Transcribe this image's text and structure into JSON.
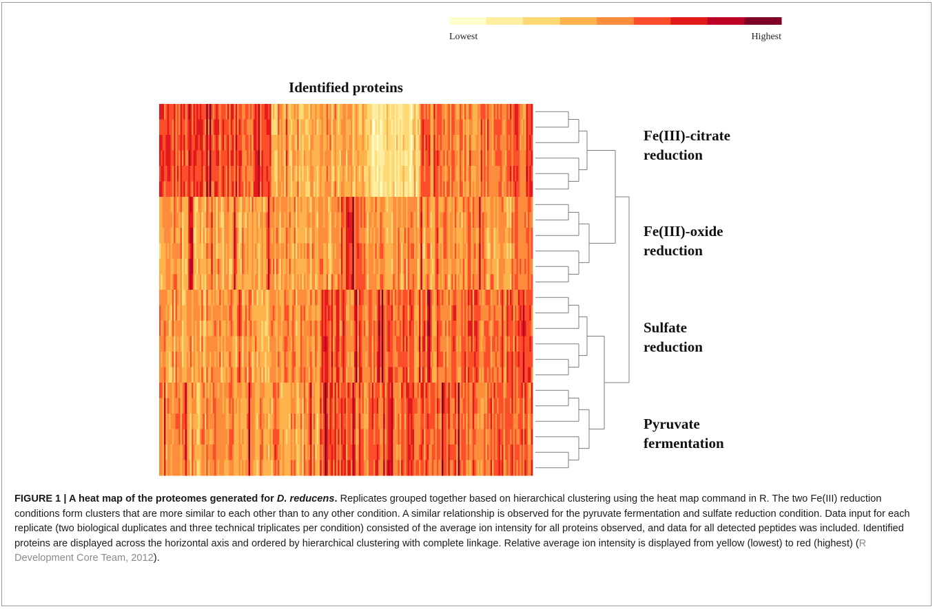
{
  "figure": {
    "caption": {
      "label": "FIGURE 1 | ",
      "title_pre": "A heat map of the proteomes generated for ",
      "title_italic": "D. reducens",
      "title_post": ".",
      "body": " Replicates grouped together based on hierarchical clustering using the heat map command in R. The two Fe(III) reduction conditions form clusters that are more similar to each other than to any other condition. A similar relationship is observed for the pyruvate fermentation and sulfate reduction condition. Data input for each replicate (two biological duplicates and three technical triplicates per condition) consisted of the average ion intensity for all proteins observed, and data for all detected peptides was included. Identified proteins are displayed across the horizontal axis and ordered by hierarchical clustering with complete linkage. Relative average ion intensity is displayed from yellow (lowest) to red (highest) (",
      "reference": "R Development Core Team, 2012",
      "end": ")."
    }
  },
  "chart_data": {
    "type": "heatmap",
    "title": "Identified proteins",
    "xlabel": "",
    "ylabel": "",
    "color_scale": {
      "low_label": "Lowest",
      "high_label": "Highest",
      "colors": [
        "#ffffcc",
        "#ffeda0",
        "#fed976",
        "#feb24c",
        "#fd8d3c",
        "#fc4e2a",
        "#e31a1c",
        "#bd0026",
        "#800026"
      ]
    },
    "groups": [
      {
        "label_line1": "Fe(III)-citrate",
        "label_line2": "reduction",
        "replicates": 6
      },
      {
        "label_line1": "Fe(III)-oxide",
        "label_line2": "reduction",
        "replicates": 6
      },
      {
        "label_line1": "Sulfate",
        "label_line2": "reduction",
        "replicates": 6
      },
      {
        "label_line1": "Pyruvate",
        "label_line2": "fermentation",
        "replicates": 6
      }
    ],
    "dendrogram": {
      "linkage": "complete",
      "group_clusters": [
        [
          "Fe(III)-citrate reduction",
          "Fe(III)-oxide reduction"
        ],
        [
          "Sulfate reduction",
          "Pyruvate fermentation"
        ]
      ]
    },
    "legend_position": "top-right",
    "grid": false
  }
}
